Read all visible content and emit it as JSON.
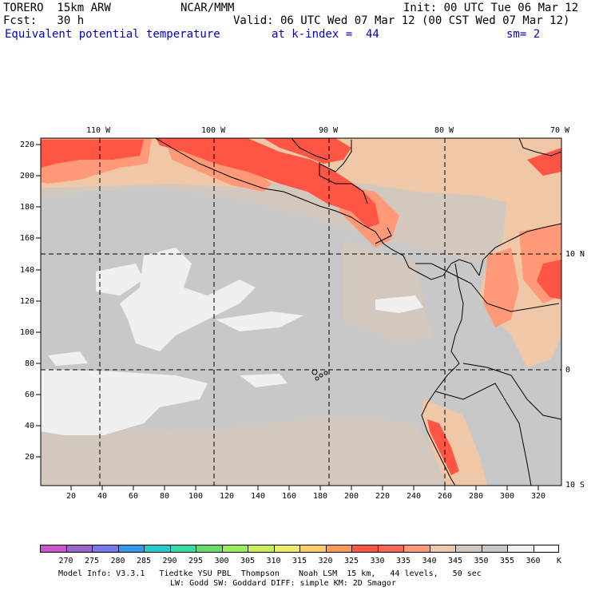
{
  "header": {
    "model": "TORERO  15km ARW",
    "center": "NCAR/MMM",
    "init": "Init: 00 UTC Tue 06 Mar 12",
    "fcst": "Fcst:   30 h",
    "valid": "Valid: 06 UTC Wed 07 Mar 12 (00 CST Wed 07 Mar 12)",
    "field": "Equivalent potential temperature",
    "level": "at k-index =  44",
    "smooth": "sm= 2"
  },
  "map": {
    "lon_labels": [
      "110 W",
      "100 W",
      "90 W",
      "80 W",
      "70 W"
    ],
    "lat_labels": [
      "10 N",
      "0",
      "10 S"
    ],
    "y_ticks": [
      "220",
      "200",
      "180",
      "160",
      "140",
      "120",
      "100",
      "80",
      "60",
      "40",
      "20"
    ],
    "x_ticks": [
      "20",
      "40",
      "60",
      "80",
      "100",
      "120",
      "140",
      "160",
      "180",
      "200",
      "220",
      "240",
      "260",
      "280",
      "300",
      "320"
    ]
  },
  "colorbar": {
    "labels": [
      "270",
      "275",
      "280",
      "285",
      "290",
      "295",
      "300",
      "305",
      "310",
      "315",
      "320",
      "325",
      "330",
      "335",
      "340",
      "345",
      "350",
      "355",
      "360",
      "K"
    ],
    "colors": [
      "#cc55cc",
      "#9966cc",
      "#7777ee",
      "#3399ee",
      "#22cccc",
      "#33ddaa",
      "#66dd66",
      "#99ee55",
      "#ccee55",
      "#eeee66",
      "#ffcc66",
      "#ff9955",
      "#ff5544",
      "#ff6655",
      "#ff9977",
      "#f0c8a8",
      "#d2c8be",
      "#c8c8c8",
      "#f0f0f0",
      "#ffffff"
    ]
  },
  "footer": {
    "line1": "Model Info: V3.3.1   Tiedtke YSU PBL  Thompson    Noah LSM  15 km,   44 levels,   50 sec",
    "line2": "LW: Godd SW: Goddard DIFF: simple KM: 2D Smagor"
  }
}
